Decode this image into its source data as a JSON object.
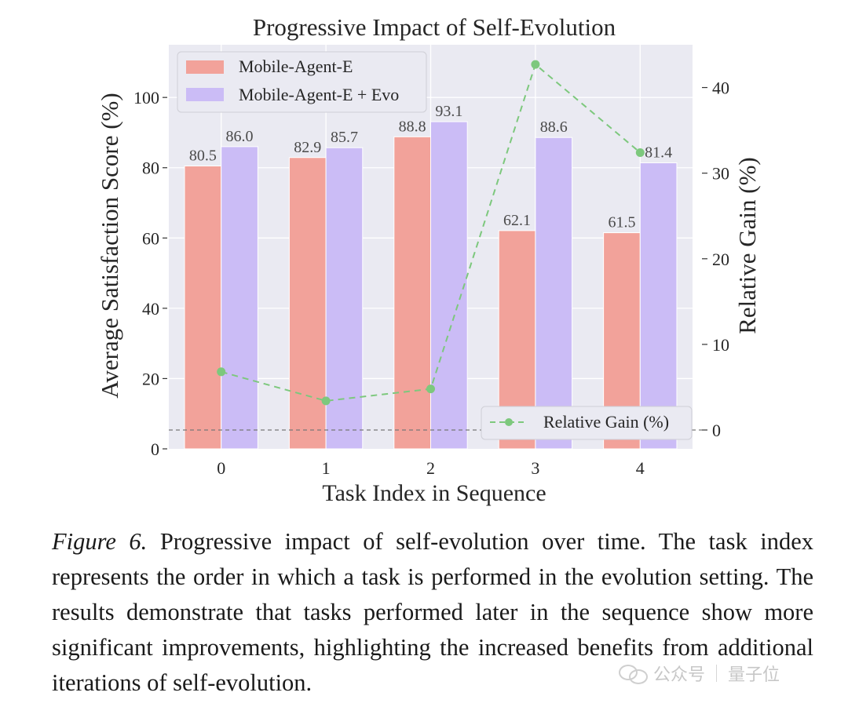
{
  "chart_data": {
    "type": "bar",
    "title": "Progressive Impact of Self-Evolution",
    "xlabel": "Task Index in Sequence",
    "ylabel": "Average Satisfaction Score (%)",
    "y2label": "Relative Gain (%)",
    "categories": [
      "0",
      "1",
      "2",
      "3",
      "4"
    ],
    "series": [
      {
        "name": "Mobile-Agent-E",
        "axis": "left",
        "kind": "bar",
        "color": "#f2a29a",
        "values": [
          80.5,
          82.9,
          88.8,
          62.1,
          61.5
        ]
      },
      {
        "name": "Mobile-Agent-E + Evo",
        "axis": "left",
        "kind": "bar",
        "color": "#cbbcf6",
        "values": [
          86.0,
          85.7,
          93.1,
          88.6,
          81.4
        ]
      },
      {
        "name": "Relative Gain (%)",
        "axis": "right",
        "kind": "line",
        "style": "dashed",
        "color": "#7dc87d",
        "values": [
          6.8,
          3.4,
          4.8,
          42.7,
          32.4
        ]
      }
    ],
    "bar_labels": [
      [
        "80.5",
        "82.9",
        "88.8",
        "62.1",
        "61.5"
      ],
      [
        "86.0",
        "85.7",
        "93.1",
        "88.6",
        "81.4"
      ]
    ],
    "ylim": [
      0,
      115
    ],
    "yticks": [
      0,
      20,
      40,
      60,
      80,
      100
    ],
    "y2lim": [
      -2.2,
      45
    ],
    "y2ticks": [
      0,
      10,
      20,
      30,
      40
    ],
    "reference_line": {
      "axis": "right",
      "value": 0,
      "style": "dashed",
      "color": "#777777"
    },
    "legend_top": "top-left",
    "legend_bottom": "bottom-right",
    "grid": true,
    "background": "#eaeaf2"
  },
  "caption": {
    "label": "Figure 6.",
    "text": " Progressive impact of self-evolution over time. The task index represents the order in which a task is performed in the evolution setting. The results demonstrate that tasks performed later in the sequence show more significant improvements, highlighting the increased benefits from additional iterations of self-evolution."
  },
  "watermark": {
    "platform": "公众号",
    "account": "量子位"
  }
}
